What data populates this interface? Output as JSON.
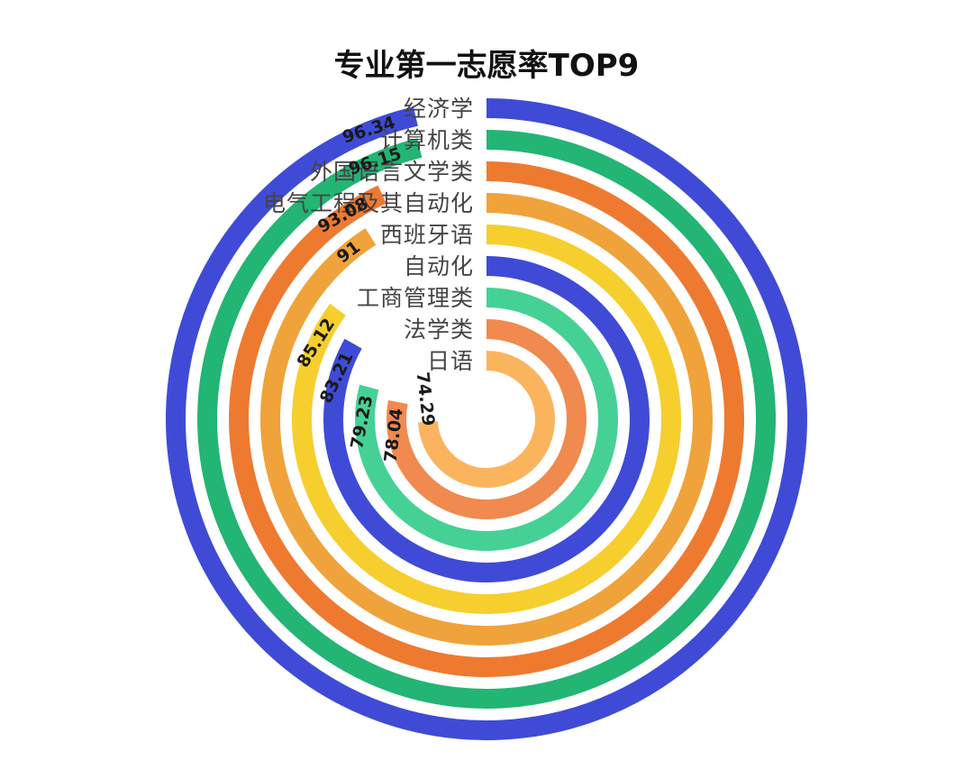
{
  "chart_data": {
    "type": "radial-bar",
    "title": "专业第一志愿率TOP9",
    "categories": [
      "经济学",
      "计算机类",
      "外国语言文学类",
      "电气工程及其自动化",
      "西班牙语",
      "自动化",
      "工商管理类",
      "法学类",
      "日语"
    ],
    "values": [
      96.34,
      96.15,
      93.08,
      91,
      85.12,
      83.21,
      79.23,
      78.04,
      74.29
    ],
    "value_labels": [
      "96.34",
      "96.15",
      "93.08",
      "91",
      "85.12",
      "83.21",
      "79.23",
      "78.04",
      "74.29"
    ],
    "max": 100,
    "colors": [
      "#3f4bd6",
      "#22b573",
      "#ee7a30",
      "#f0a33a",
      "#f6cf2e",
      "#3f4bd6",
      "#45d196",
      "#f08a4e",
      "#fbb45e"
    ]
  }
}
